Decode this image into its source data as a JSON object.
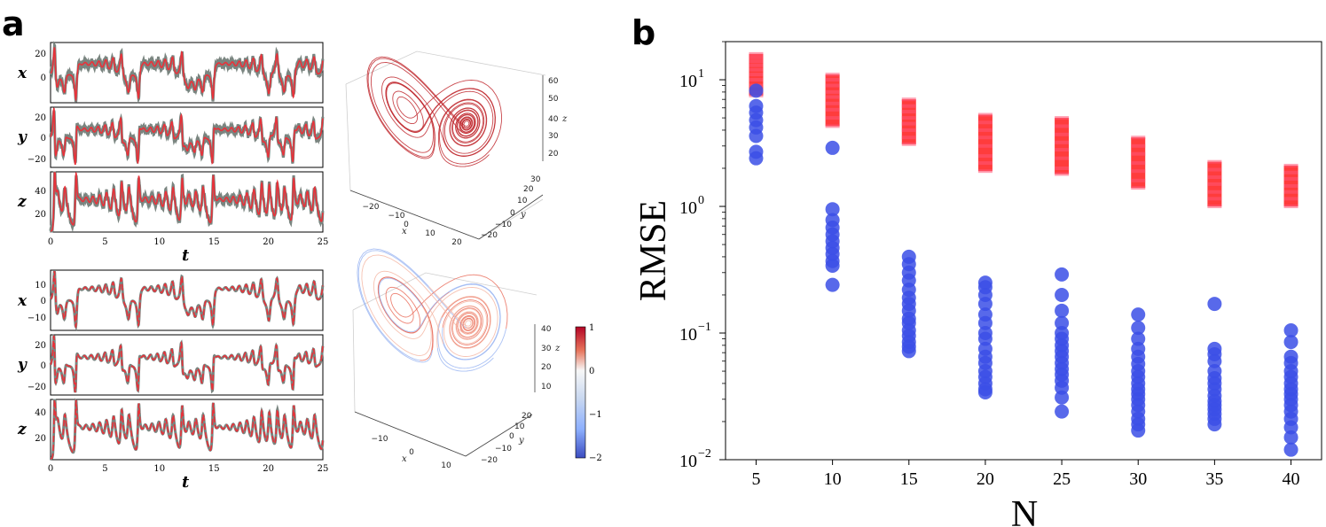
{
  "panel_labels": {
    "a": "a",
    "b": "b"
  },
  "colors": {
    "truth": "#7a8580",
    "pred": "#e8323a",
    "blue_points": "#3b4fe6",
    "red_points": "#ff1a1a"
  },
  "panel_a": {
    "time_axis": {
      "label": "t",
      "ticks": [
        "0",
        "5",
        "10",
        "15",
        "20",
        "25"
      ]
    },
    "top_group": {
      "rows": [
        {
          "var": "x",
          "ticks": [
            "20",
            "0"
          ]
        },
        {
          "var": "y",
          "ticks": [
            "20",
            "0",
            "−20"
          ]
        },
        {
          "var": "z",
          "ticks": [
            "40",
            "20"
          ]
        }
      ]
    },
    "bottom_group": {
      "rows": [
        {
          "var": "x",
          "ticks": [
            "10",
            "0",
            "−10"
          ]
        },
        {
          "var": "y",
          "ticks": [
            "20",
            "0",
            "−20"
          ]
        },
        {
          "var": "z",
          "ticks": [
            "40",
            "20"
          ]
        }
      ]
    },
    "attractor_top": {
      "x_label": "x",
      "x_ticks": [
        "−20",
        "−10",
        "0",
        "10",
        "20"
      ],
      "y_label": "y",
      "y_ticks": [
        "30",
        "20",
        "10",
        "0",
        "−10",
        "−20"
      ],
      "z_label": "z",
      "z_ticks": [
        "60",
        "50",
        "40",
        "30",
        "20"
      ]
    },
    "attractor_bottom": {
      "x_label": "x",
      "x_ticks": [
        "−10",
        "0",
        "10"
      ],
      "y_label": "y",
      "y_ticks": [
        "20",
        "10",
        "0",
        "−10",
        "−20"
      ],
      "z_label": "z",
      "z_ticks": [
        "40",
        "30",
        "20",
        "10"
      ]
    },
    "colorbar": {
      "ticks": [
        "1",
        "0",
        "−1",
        "−2"
      ],
      "range": [
        -2,
        1
      ]
    }
  },
  "chart_data": {
    "type": "scatter",
    "title": "",
    "xlabel": "N",
    "ylabel": "RMSE",
    "yscale": "log",
    "ylim": [
      0.01,
      20
    ],
    "xlim": [
      3,
      42
    ],
    "x_ticks": [
      "5",
      "10",
      "15",
      "20",
      "25",
      "30",
      "35",
      "40"
    ],
    "y_ticks": [
      {
        "base": "10",
        "exp": "1",
        "value": 10
      },
      {
        "base": "10",
        "exp": "0",
        "value": 1
      },
      {
        "base": "10",
        "exp": "−1",
        "value": 0.1
      },
      {
        "base": "10",
        "exp": "−2",
        "value": 0.01
      }
    ],
    "series": [
      {
        "name": "red",
        "marker": "bar-tick",
        "points": [
          {
            "x": 5,
            "values": [
              7.5,
              8,
              9,
              10,
              11,
              12,
              13,
              14,
              15,
              16
            ]
          },
          {
            "x": 10,
            "values": [
              4.3,
              5,
              5.8,
              6.5,
              7.3,
              8,
              9,
              10,
              11
            ]
          },
          {
            "x": 15,
            "values": [
              3.1,
              3.5,
              4,
              4.5,
              5,
              5.6,
              6.2,
              7
            ]
          },
          {
            "x": 20,
            "values": [
              1.9,
              2.2,
              2.5,
              3,
              3.5,
              4,
              4.6,
              5.3
            ]
          },
          {
            "x": 25,
            "values": [
              1.8,
              2,
              2.4,
              2.8,
              3.2,
              3.7,
              4.3,
              5
            ]
          },
          {
            "x": 30,
            "values": [
              1.4,
              1.6,
              1.9,
              2.2,
              2.6,
              3,
              3.5
            ]
          },
          {
            "x": 35,
            "values": [
              1.0,
              1.15,
              1.3,
              1.5,
              1.7,
              1.95,
              2.25
            ]
          },
          {
            "x": 40,
            "values": [
              1.0,
              1.15,
              1.3,
              1.45,
              1.65,
              1.85,
              2.1
            ]
          }
        ]
      },
      {
        "name": "blue",
        "marker": "circle",
        "points": [
          {
            "x": 5,
            "values": [
              8.2,
              6.2,
              5.5,
              4.8,
              4.2,
              3.6,
              2.7,
              2.4
            ]
          },
          {
            "x": 10,
            "values": [
              2.9,
              0.95,
              0.78,
              0.68,
              0.6,
              0.53,
              0.47,
              0.42,
              0.37,
              0.34,
              0.24
            ]
          },
          {
            "x": 15,
            "values": [
              0.4,
              0.35,
              0.3,
              0.26,
              0.22,
              0.19,
              0.17,
              0.15,
              0.13,
              0.12,
              0.105,
              0.095,
              0.085,
              0.078,
              0.072
            ]
          },
          {
            "x": 20,
            "values": [
              0.25,
              0.23,
              0.2,
              0.17,
              0.14,
              0.12,
              0.1,
              0.09,
              0.075,
              0.065,
              0.058,
              0.05,
              0.045,
              0.04,
              0.036,
              0.034
            ]
          },
          {
            "x": 25,
            "values": [
              0.29,
              0.2,
              0.15,
              0.12,
              0.1,
              0.09,
              0.08,
              0.072,
              0.065,
              0.058,
              0.052,
              0.047,
              0.042,
              0.037,
              0.031,
              0.024
            ]
          },
          {
            "x": 30,
            "values": [
              0.14,
              0.11,
              0.09,
              0.075,
              0.065,
              0.057,
              0.05,
              0.045,
              0.04,
              0.036,
              0.033,
              0.03,
              0.027,
              0.024,
              0.021,
              0.019,
              0.017
            ]
          },
          {
            "x": 35,
            "values": [
              0.17,
              0.075,
              0.068,
              0.06,
              0.05,
              0.044,
              0.04,
              0.036,
              0.032,
              0.029,
              0.027,
              0.025,
              0.023,
              0.021,
              0.019
            ]
          },
          {
            "x": 40,
            "values": [
              0.105,
              0.085,
              0.065,
              0.058,
              0.05,
              0.045,
              0.04,
              0.036,
              0.033,
              0.03,
              0.027,
              0.024,
              0.021,
              0.018,
              0.015,
              0.012
            ]
          }
        ]
      }
    ]
  }
}
